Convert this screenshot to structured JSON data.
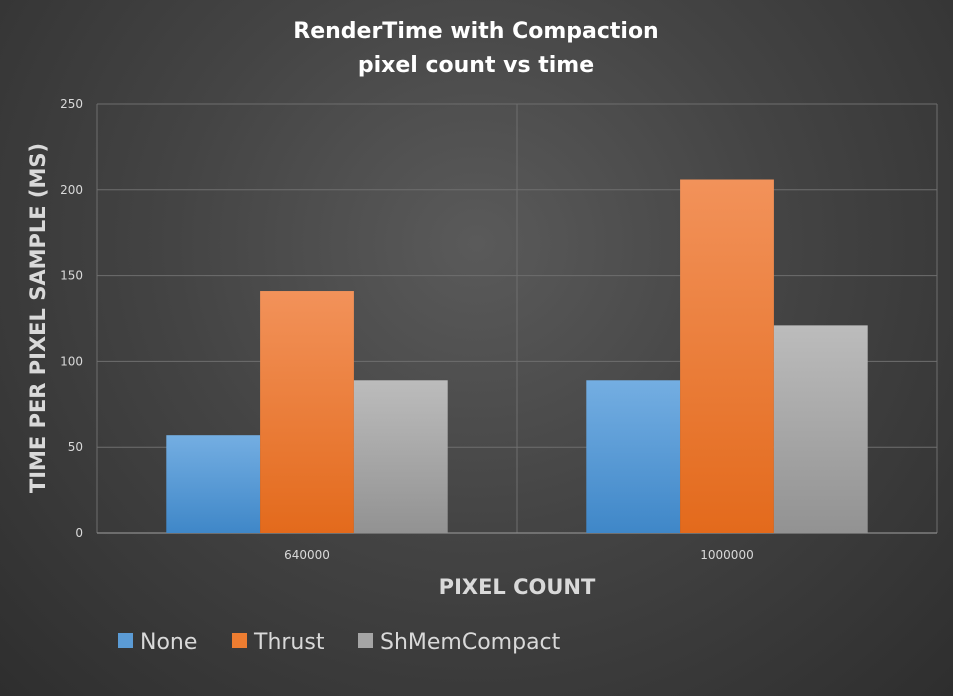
{
  "chart_data": {
    "type": "bar",
    "title": [
      "RenderTime with Compaction",
      "pixel count vs time"
    ],
    "xlabel": "PIXEL COUNT",
    "ylabel": "TIME PER PIXEL SAMPLE (MS)",
    "categories": [
      "640000",
      "1000000"
    ],
    "series": [
      {
        "name": "None",
        "values": [
          57,
          89
        ],
        "color": "#5b9bd5"
      },
      {
        "name": "Thrust",
        "values": [
          141,
          206
        ],
        "color": "#ed7d31"
      },
      {
        "name": "ShMemCompact",
        "values": [
          89,
          121
        ],
        "color": "#a5a5a5"
      }
    ],
    "ylim": [
      0,
      250
    ],
    "yticks": [
      0,
      50,
      100,
      150,
      200,
      250
    ],
    "grid": true,
    "legend_position": "bottom-left"
  }
}
